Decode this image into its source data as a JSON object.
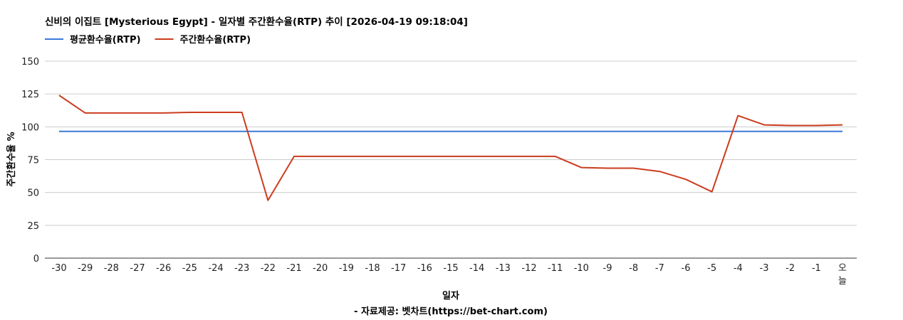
{
  "chart_data": {
    "type": "line",
    "title": "신비의 이집트 [Mysterious Egypt] - 일자별 주간환수율(RTP) 추이 [2026-04-19 09:18:04]",
    "xlabel": "일자",
    "ylabel": "주간환수율 %",
    "footer": "- 자료제공: 벳차트(https://bet-chart.com)",
    "ylim": [
      0,
      150
    ],
    "yticks": [
      "0",
      "25",
      "50",
      "75",
      "100",
      "125",
      "150"
    ],
    "grid": true,
    "legend_position": "top-left",
    "categories": [
      "-30",
      "-29",
      "-28",
      "-27",
      "-26",
      "-25",
      "-24",
      "-23",
      "-22",
      "-21",
      "-20",
      "-19",
      "-18",
      "-17",
      "-16",
      "-15",
      "-14",
      "-13",
      "-12",
      "-11",
      "-10",
      "-9",
      "-8",
      "-7",
      "-6",
      "-5",
      "-4",
      "-3",
      "-2",
      "-1",
      "오늘"
    ],
    "series": [
      {
        "name": "평균환수율(RTP)",
        "color": "#3c78d8",
        "values": [
          96.5,
          96.5,
          96.5,
          96.5,
          96.5,
          96.5,
          96.5,
          96.5,
          96.5,
          96.5,
          96.5,
          96.5,
          96.5,
          96.5,
          96.5,
          96.5,
          96.5,
          96.5,
          96.5,
          96.5,
          96.5,
          96.5,
          96.5,
          96.5,
          96.5,
          96.5,
          96.5,
          96.5,
          96.5,
          96.5,
          96.5
        ]
      },
      {
        "name": "주간환수율(RTP)",
        "color": "#cc3c1e",
        "values": [
          124,
          110.5,
          110.5,
          110.5,
          110.5,
          111,
          111,
          111,
          44,
          77.5,
          77.5,
          77.5,
          77.5,
          77.5,
          77.5,
          77.5,
          77.5,
          77.5,
          77.5,
          77.5,
          69,
          68.5,
          68.5,
          66,
          60,
          50.5,
          108.5,
          101.5,
          101,
          101,
          101.5
        ]
      }
    ]
  }
}
